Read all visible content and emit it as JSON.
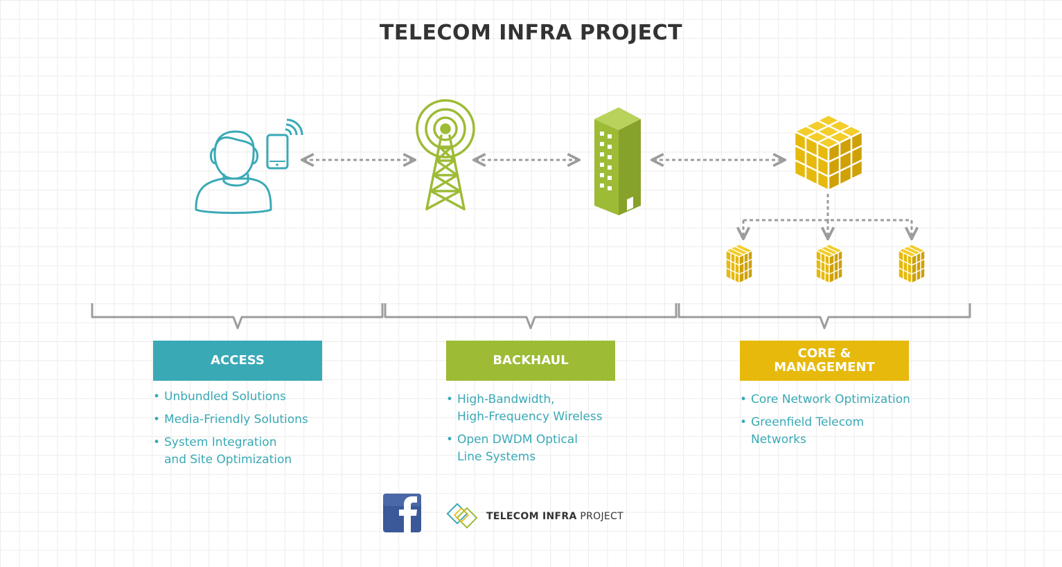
{
  "title": "TELECOM INFRA PROJECT",
  "colors": {
    "access": "#39a9b6",
    "backhaul": "#9dbb35",
    "core": "#e6b90c",
    "connector": "#9c9c9c",
    "text_dark": "#333333"
  },
  "icons": {
    "user": "person-icon",
    "phone": "smartphone-wireless-icon",
    "tower": "cell-tower-icon",
    "building": "office-building-icon",
    "core_cube": "large-cube-icon",
    "small_cubes": [
      "small-cube-icon",
      "small-cube-icon",
      "small-cube-icon"
    ],
    "facebook": "facebook-logo"
  },
  "sections": [
    {
      "label": "ACCESS",
      "bullets": [
        "Unbundled Solutions",
        "Media-Friendly Solutions",
        "System Integration\nand Site Optimization"
      ]
    },
    {
      "label": "BACKHAUL",
      "bullets": [
        "High-Bandwidth,\nHigh-Frequency Wireless",
        "Open DWDM Optical\nLine Systems"
      ]
    },
    {
      "label": "CORE &\nMANAGEMENT",
      "bullets": [
        "Core Network Optimization",
        "Greenfield Telecom\nNetworks"
      ]
    }
  ],
  "footer": {
    "logo_text_bold": "TELECOM INFRA",
    "logo_text_regular": "PROJECT"
  }
}
